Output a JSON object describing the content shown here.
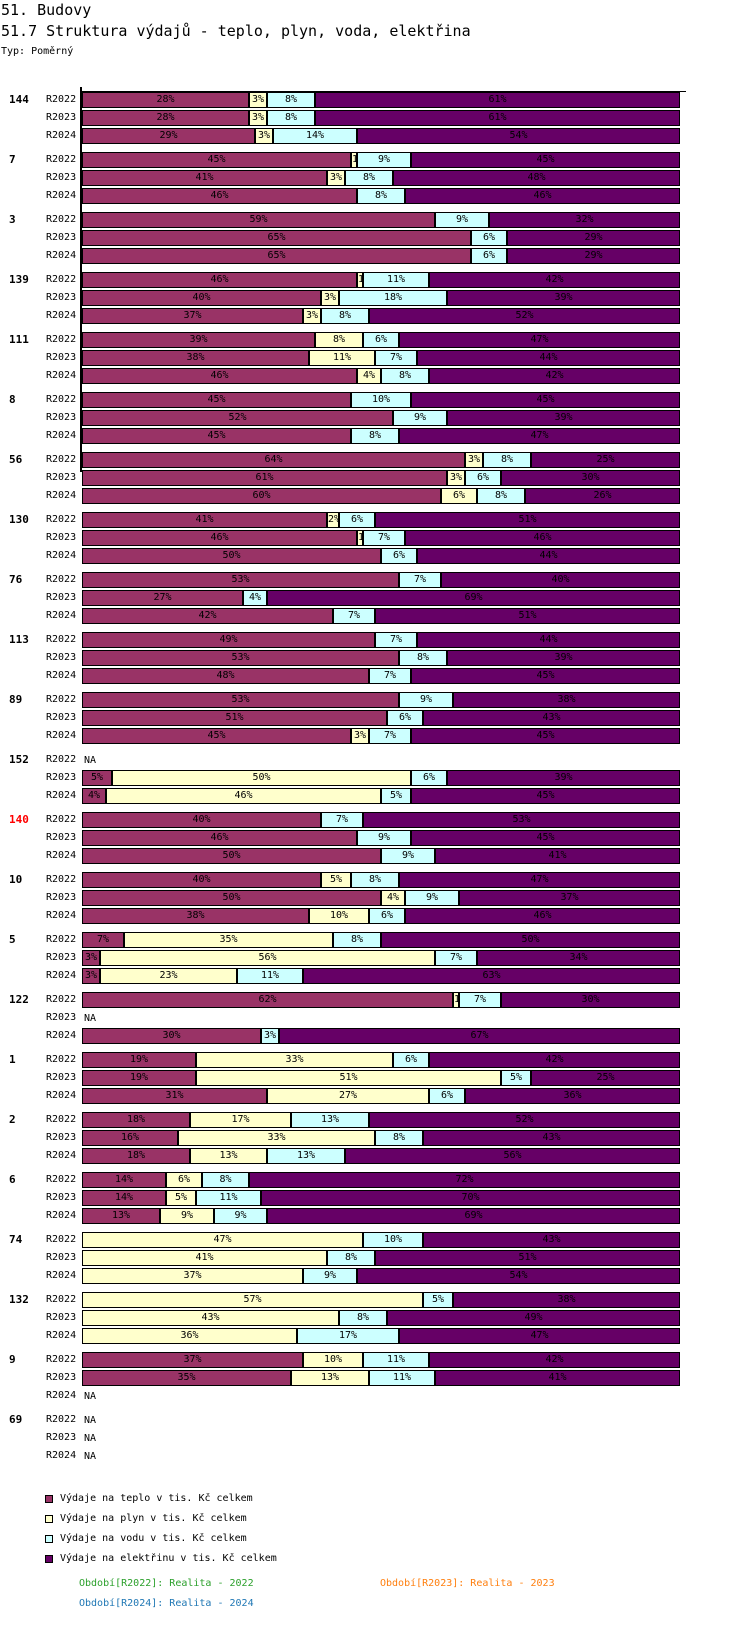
{
  "header": {
    "title": "51. Budovy",
    "subtitle": "51.7 Struktura výdajů - teplo, plyn, voda, elektřina",
    "type_label": "Typ: Poměrný"
  },
  "colors": {
    "teplo": "#993366",
    "plyn": "#FFFFCC",
    "voda": "#CCFFFF",
    "elektrina": "#660066",
    "highlight_label": "#FF0000",
    "period_R2022": "#2CA02C",
    "period_R2023": "#FF7F0E",
    "period_R2024": "#1F77B4"
  },
  "legend": [
    {
      "key": "teplo",
      "label": "Výdaje na teplo v tis. Kč celkem"
    },
    {
      "key": "plyn",
      "label": "Výdaje na plyn v tis. Kč celkem"
    },
    {
      "key": "voda",
      "label": "Výdaje na vodu v tis. Kč celkem"
    },
    {
      "key": "elektrina",
      "label": "Výdaje na elektřinu v tis. Kč celkem"
    }
  ],
  "periods": [
    {
      "code": "R2022",
      "text": "Období[R2022]: Realita - 2022"
    },
    {
      "code": "R2023",
      "text": "Období[R2023]: Realita - 2023"
    },
    {
      "code": "R2024",
      "text": "Období[R2024]: Realita - 2024"
    }
  ],
  "na_label": "NA",
  "chart_data": {
    "type": "bar",
    "orientation": "horizontal",
    "stacked": true,
    "normalized": "percent",
    "title": "51.7 Struktura výdajů - teplo, plyn, voda, elektřina",
    "xlabel": "",
    "ylabel": "",
    "xlim": [
      0,
      100
    ],
    "grid": false,
    "legend_position": "bottom-left",
    "series_names": [
      "Výdaje na teplo v tis. Kč celkem",
      "Výdaje na plyn v tis. Kč celkem",
      "Výdaje na vodu v tis. Kč celkem",
      "Výdaje na elektřinu v tis. Kč celkem"
    ],
    "series_keys": [
      "teplo",
      "plyn",
      "voda",
      "elektrina"
    ],
    "groups": [
      {
        "label": "144",
        "rows": [
          {
            "period": "R2022",
            "values": [
              28,
              3,
              8,
              61
            ]
          },
          {
            "period": "R2023",
            "values": [
              28,
              3,
              8,
              61
            ]
          },
          {
            "period": "R2024",
            "values": [
              29,
              3,
              14,
              54
            ]
          }
        ]
      },
      {
        "label": "7",
        "rows": [
          {
            "period": "R2022",
            "values": [
              45,
              1,
              9,
              45
            ]
          },
          {
            "period": "R2023",
            "values": [
              41,
              3,
              8,
              48
            ]
          },
          {
            "period": "R2024",
            "values": [
              46,
              0,
              8,
              46
            ]
          }
        ]
      },
      {
        "label": "3",
        "rows": [
          {
            "period": "R2022",
            "values": [
              59,
              0,
              9,
              32
            ]
          },
          {
            "period": "R2023",
            "values": [
              65,
              0,
              6,
              29
            ]
          },
          {
            "period": "R2024",
            "values": [
              65,
              0,
              6,
              29
            ]
          }
        ]
      },
      {
        "label": "139",
        "rows": [
          {
            "period": "R2022",
            "values": [
              46,
              1,
              11,
              42
            ]
          },
          {
            "period": "R2023",
            "values": [
              40,
              3,
              18,
              39
            ]
          },
          {
            "period": "R2024",
            "values": [
              37,
              3,
              8,
              52
            ]
          }
        ]
      },
      {
        "label": "111",
        "rows": [
          {
            "period": "R2022",
            "values": [
              39,
              8,
              6,
              47
            ]
          },
          {
            "period": "R2023",
            "values": [
              38,
              11,
              7,
              44
            ]
          },
          {
            "period": "R2024",
            "values": [
              46,
              4,
              8,
              42
            ]
          }
        ]
      },
      {
        "label": "8",
        "rows": [
          {
            "period": "R2022",
            "values": [
              45,
              0,
              10,
              45
            ]
          },
          {
            "period": "R2023",
            "values": [
              52,
              0,
              9,
              39
            ]
          },
          {
            "period": "R2024",
            "values": [
              45,
              0,
              8,
              47
            ]
          }
        ]
      },
      {
        "label": "56",
        "rows": [
          {
            "period": "R2022",
            "values": [
              64,
              3,
              8,
              25
            ]
          },
          {
            "period": "R2023",
            "values": [
              61,
              3,
              6,
              30
            ]
          },
          {
            "period": "R2024",
            "values": [
              60,
              6,
              8,
              26
            ]
          }
        ]
      },
      {
        "label": "130",
        "rows": [
          {
            "period": "R2022",
            "values": [
              41,
              2,
              6,
              51
            ]
          },
          {
            "period": "R2023",
            "values": [
              46,
              1,
              7,
              46
            ]
          },
          {
            "period": "R2024",
            "values": [
              50,
              0,
              6,
              44
            ]
          }
        ]
      },
      {
        "label": "76",
        "rows": [
          {
            "period": "R2022",
            "values": [
              53,
              0,
              7,
              40
            ]
          },
          {
            "period": "R2023",
            "values": [
              27,
              0,
              4,
              69
            ]
          },
          {
            "period": "R2024",
            "values": [
              42,
              0,
              7,
              51
            ]
          }
        ]
      },
      {
        "label": "113",
        "rows": [
          {
            "period": "R2022",
            "values": [
              49,
              0,
              7,
              44
            ]
          },
          {
            "period": "R2023",
            "values": [
              53,
              0,
              8,
              39
            ]
          },
          {
            "period": "R2024",
            "values": [
              48,
              0,
              7,
              45
            ]
          }
        ]
      },
      {
        "label": "89",
        "rows": [
          {
            "period": "R2022",
            "values": [
              53,
              0,
              9,
              38
            ]
          },
          {
            "period": "R2023",
            "values": [
              51,
              0,
              6,
              43
            ]
          },
          {
            "period": "R2024",
            "values": [
              45,
              3,
              7,
              45
            ]
          }
        ]
      },
      {
        "label": "152",
        "rows": [
          {
            "period": "R2022",
            "values": null
          },
          {
            "period": "R2023",
            "values": [
              5,
              50,
              6,
              39
            ]
          },
          {
            "period": "R2024",
            "values": [
              4,
              46,
              5,
              45
            ]
          }
        ]
      },
      {
        "label": "140",
        "highlight": true,
        "rows": [
          {
            "period": "R2022",
            "values": [
              40,
              0,
              7,
              53
            ]
          },
          {
            "period": "R2023",
            "values": [
              46,
              0,
              9,
              45
            ]
          },
          {
            "period": "R2024",
            "values": [
              50,
              0,
              9,
              41
            ]
          }
        ]
      },
      {
        "label": "10",
        "rows": [
          {
            "period": "R2022",
            "values": [
              40,
              5,
              8,
              47
            ]
          },
          {
            "period": "R2023",
            "values": [
              50,
              4,
              9,
              37
            ]
          },
          {
            "period": "R2024",
            "values": [
              38,
              10,
              6,
              46
            ]
          }
        ]
      },
      {
        "label": "5",
        "rows": [
          {
            "period": "R2022",
            "values": [
              7,
              35,
              8,
              50
            ]
          },
          {
            "period": "R2023",
            "values": [
              3,
              56,
              7,
              34
            ]
          },
          {
            "period": "R2024",
            "values": [
              3,
              23,
              11,
              63
            ]
          }
        ]
      },
      {
        "label": "122",
        "rows": [
          {
            "period": "R2022",
            "values": [
              62,
              1,
              7,
              30
            ]
          },
          {
            "period": "R2023",
            "values": null
          },
          {
            "period": "R2024",
            "values": [
              30,
              0,
              3,
              67
            ]
          }
        ]
      },
      {
        "label": "1",
        "rows": [
          {
            "period": "R2022",
            "values": [
              19,
              33,
              6,
              42
            ]
          },
          {
            "period": "R2023",
            "values": [
              19,
              51,
              5,
              25
            ]
          },
          {
            "period": "R2024",
            "values": [
              31,
              27,
              6,
              36
            ]
          }
        ]
      },
      {
        "label": "2",
        "rows": [
          {
            "period": "R2022",
            "values": [
              18,
              17,
              13,
              52
            ]
          },
          {
            "period": "R2023",
            "values": [
              16,
              33,
              8,
              43
            ]
          },
          {
            "period": "R2024",
            "values": [
              18,
              13,
              13,
              56
            ]
          }
        ]
      },
      {
        "label": "6",
        "rows": [
          {
            "period": "R2022",
            "values": [
              14,
              6,
              8,
              72
            ]
          },
          {
            "period": "R2023",
            "values": [
              14,
              5,
              11,
              70
            ]
          },
          {
            "period": "R2024",
            "values": [
              13,
              9,
              9,
              69
            ]
          }
        ]
      },
      {
        "label": "74",
        "rows": [
          {
            "period": "R2022",
            "values": [
              0,
              47,
              10,
              43
            ]
          },
          {
            "period": "R2023",
            "values": [
              0,
              41,
              8,
              51
            ]
          },
          {
            "period": "R2024",
            "values": [
              0,
              37,
              9,
              54
            ]
          }
        ]
      },
      {
        "label": "132",
        "rows": [
          {
            "period": "R2022",
            "values": [
              0,
              57,
              5,
              38
            ]
          },
          {
            "period": "R2023",
            "values": [
              0,
              43,
              8,
              49
            ]
          },
          {
            "period": "R2024",
            "values": [
              0,
              36,
              17,
              47
            ]
          }
        ]
      },
      {
        "label": "9",
        "rows": [
          {
            "period": "R2022",
            "values": [
              37,
              10,
              11,
              42
            ]
          },
          {
            "period": "R2023",
            "values": [
              35,
              13,
              11,
              41
            ]
          },
          {
            "period": "R2024",
            "values": null
          }
        ]
      },
      {
        "label": "69",
        "rows": [
          {
            "period": "R2022",
            "values": null
          },
          {
            "period": "R2023",
            "values": null
          },
          {
            "period": "R2024",
            "values": null
          }
        ]
      }
    ]
  }
}
